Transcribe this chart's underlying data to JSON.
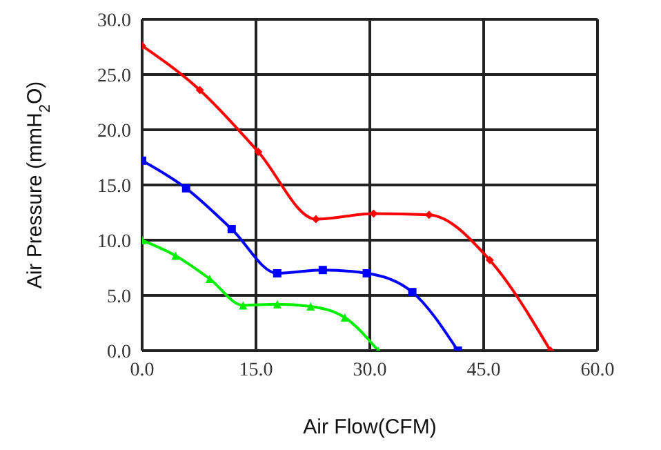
{
  "chart_data": {
    "type": "line",
    "xlabel": "Air Flow(CFM)",
    "ylabel": "Air Pressure (mmH$_{2}$O)",
    "xlim": [
      0,
      60
    ],
    "xticks": [
      {
        "value": 0,
        "label": "0.0"
      },
      {
        "value": 15,
        "label": "15.0"
      },
      {
        "value": 30,
        "label": "30.0"
      },
      {
        "value": 45,
        "label": "45.0"
      },
      {
        "value": 60,
        "label": "60.0"
      }
    ],
    "ylim": [
      0,
      30
    ],
    "yticks": [
      {
        "value": 0,
        "label": "0.0"
      },
      {
        "value": 5,
        "label": "5.0"
      },
      {
        "value": 10,
        "label": "10.0"
      },
      {
        "value": 15,
        "label": "15.0"
      },
      {
        "value": 20,
        "label": "20.0"
      },
      {
        "value": 25,
        "label": "25.0"
      },
      {
        "value": 30,
        "label": "30.0"
      }
    ],
    "grid": true,
    "legend": false,
    "line_style": "solid",
    "series": [
      {
        "color": "#ff0000",
        "marker": "diamond",
        "x": [
          0,
          7.6,
          15.3,
          22.9,
          30.5,
          37.8,
          45.8,
          53.8
        ],
        "values": [
          27.6,
          23.6,
          18,
          11.9,
          12.4,
          12.3,
          8.2,
          0
        ]
      },
      {
        "color": "#0000ff",
        "marker": "square",
        "x": [
          0,
          5.8,
          11.8,
          17.8,
          23.8,
          29.6,
          35.6,
          41.6
        ],
        "values": [
          17.2,
          14.7,
          11,
          7,
          7.3,
          7,
          5.3,
          0
        ]
      },
      {
        "color": "#00ee00",
        "marker": "triangle",
        "x": [
          0,
          4.4,
          8.9,
          13.3,
          17.8,
          22.2,
          26.7,
          31.1
        ],
        "values": [
          10,
          8.6,
          6.5,
          4.1,
          4.2,
          4,
          3,
          0
        ]
      }
    ]
  }
}
